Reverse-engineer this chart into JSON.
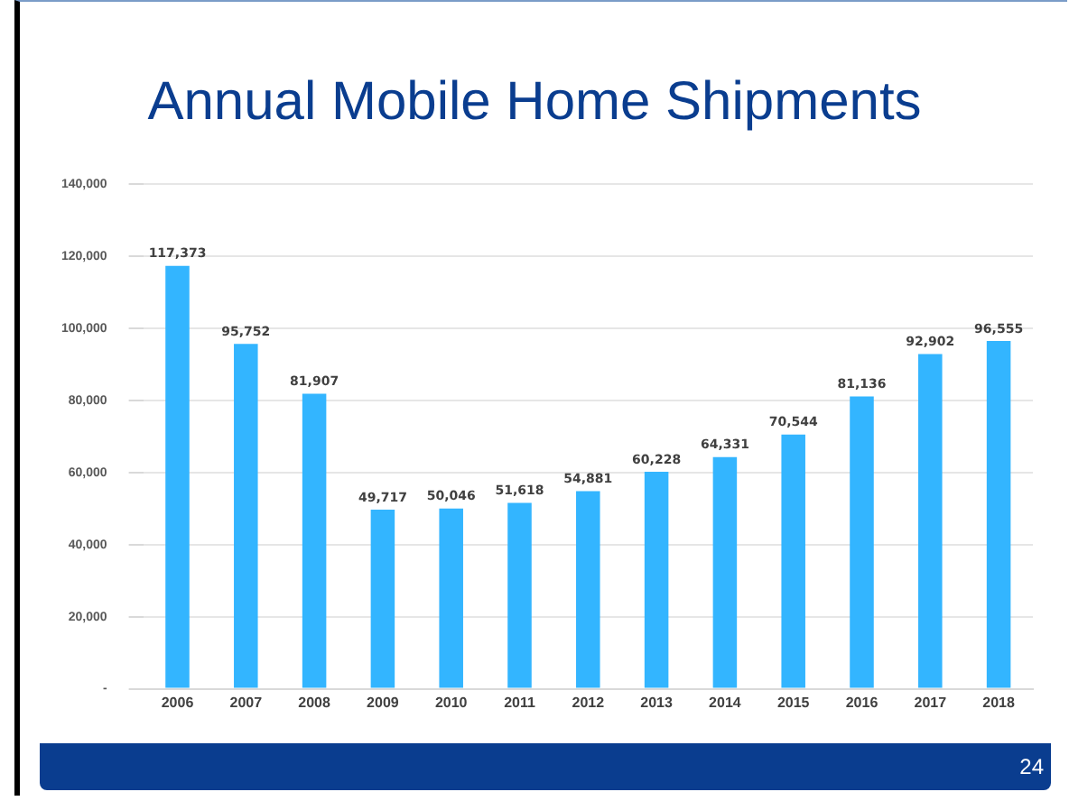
{
  "chart_data": {
    "type": "bar",
    "title": "Annual Mobile Home Shipments",
    "categories": [
      "2006",
      "2007",
      "2008",
      "2009",
      "2010",
      "2011",
      "2012",
      "2013",
      "2014",
      "2015",
      "2016",
      "2017",
      "2018"
    ],
    "values": [
      117373,
      95752,
      81907,
      49717,
      50046,
      51618,
      54881,
      60228,
      64331,
      70544,
      81136,
      92902,
      96555
    ],
    "value_labels": [
      "117,373",
      "95,752",
      "81,907",
      "49,717",
      "50,046",
      "51,618",
      "54,881",
      "60,228",
      "64,331",
      "70,544",
      "81,136",
      "92,902",
      "96,555"
    ],
    "color": "#33b5ff",
    "ylim": [
      0,
      140000
    ],
    "yticks": [
      {
        "value": 0,
        "label": "-"
      },
      {
        "value": 20000,
        "label": "20,000"
      },
      {
        "value": 40000,
        "label": "40,000"
      },
      {
        "value": 60000,
        "label": "60,000"
      },
      {
        "value": 80000,
        "label": "80,000"
      },
      {
        "value": 100000,
        "label": "100,000"
      },
      {
        "value": 120000,
        "label": "120,000"
      },
      {
        "value": 140000,
        "label": "140,000"
      }
    ],
    "grid": "y",
    "legend": false,
    "annotations": [
      "24"
    ]
  }
}
